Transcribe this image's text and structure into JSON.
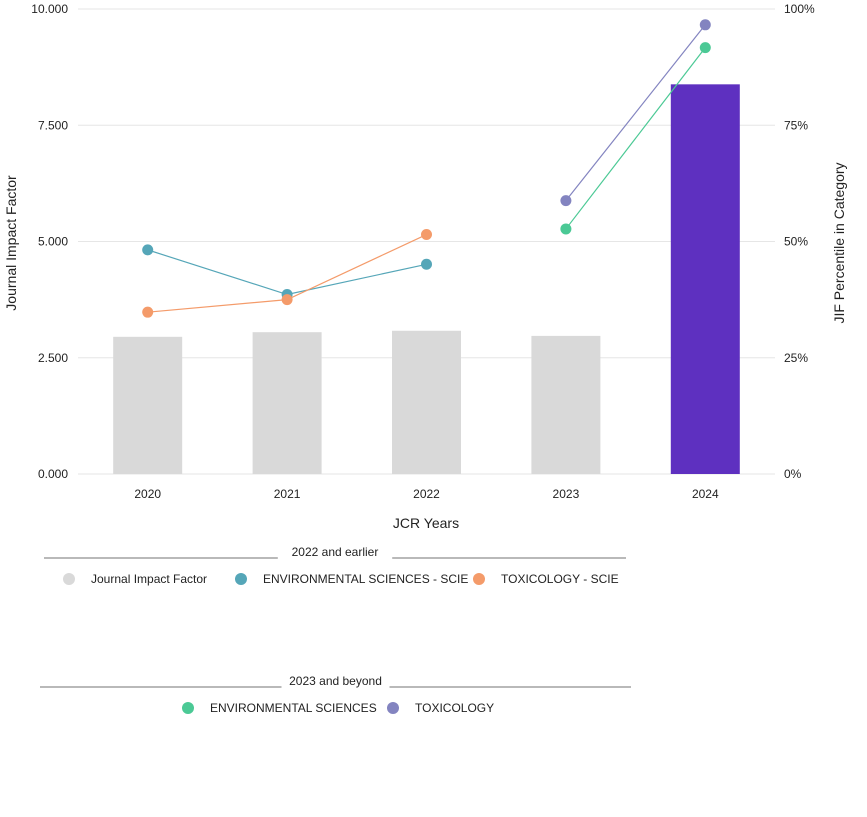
{
  "chart_data": {
    "type": "bar",
    "categories": [
      "2020",
      "2021",
      "2022",
      "2023",
      "2024"
    ],
    "xlabel": "JCR Years",
    "ylabel": "Journal Impact Factor",
    "y2label": "JIF Percentile in Category",
    "ylim": [
      0,
      10
    ],
    "y2lim": [
      0,
      100
    ],
    "yticks": [
      "0.000",
      "2.500",
      "5.000",
      "7.500",
      "10.000"
    ],
    "y2ticks": [
      "0%",
      "25%",
      "50%",
      "75%",
      "100%"
    ],
    "grid": true,
    "bars": {
      "name": "Journal Impact Factor",
      "values": [
        2.95,
        3.05,
        3.08,
        2.97,
        8.38
      ],
      "colors": [
        "#d9d9d9",
        "#d9d9d9",
        "#d9d9d9",
        "#d9d9d9",
        "#5e30c0"
      ]
    },
    "series": [
      {
        "name": "ENVIRONMENTAL SCIENCES - SCIE",
        "axis": "right",
        "color": "#55a6b8",
        "points": [
          {
            "x": "2020",
            "y": 48.2
          },
          {
            "x": "2021",
            "y": 38.6
          },
          {
            "x": "2022",
            "y": 45.1
          }
        ]
      },
      {
        "name": "TOXICOLOGY - SCIE",
        "axis": "right",
        "color": "#f49b6a",
        "points": [
          {
            "x": "2020",
            "y": 34.8
          },
          {
            "x": "2021",
            "y": 37.5
          },
          {
            "x": "2022",
            "y": 51.5
          }
        ]
      },
      {
        "name": "ENVIRONMENTAL SCIENCES",
        "axis": "right",
        "color": "#4bc995",
        "points": [
          {
            "x": "2023",
            "y": 52.7
          },
          {
            "x": "2024",
            "y": 91.7
          }
        ]
      },
      {
        "name": "TOXICOLOGY",
        "axis": "right",
        "color": "#8384c0",
        "points": [
          {
            "x": "2023",
            "y": 58.8
          },
          {
            "x": "2024",
            "y": 96.6
          }
        ]
      }
    ],
    "legend": {
      "placement": "bottom",
      "groups": [
        {
          "title": "2022 and earlier",
          "items": [
            {
              "label": "Journal Impact Factor",
              "color": "#d9d9d9"
            },
            {
              "label": "ENVIRONMENTAL SCIENCES - SCIE",
              "color": "#55a6b8"
            },
            {
              "label": "TOXICOLOGY - SCIE",
              "color": "#f49b6a"
            }
          ]
        },
        {
          "title": "2023 and beyond",
          "items": [
            {
              "label": "ENVIRONMENTAL SCIENCES",
              "color": "#4bc995"
            },
            {
              "label": "TOXICOLOGY",
              "color": "#8384c0"
            }
          ]
        }
      ]
    }
  }
}
